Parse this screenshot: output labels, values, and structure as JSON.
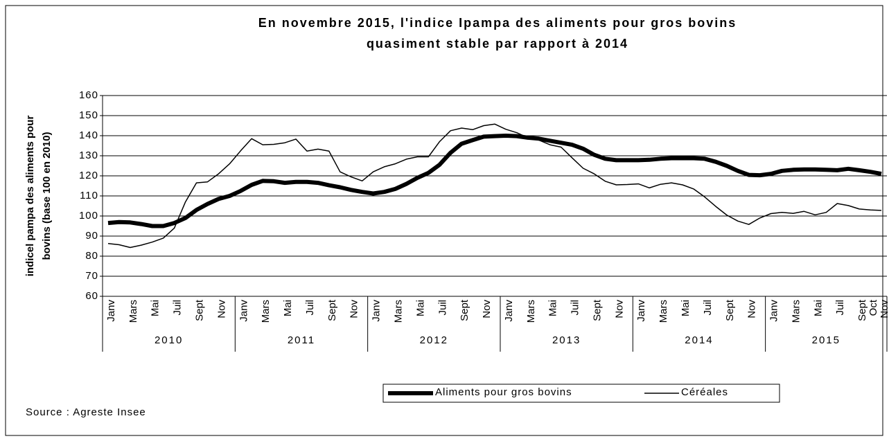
{
  "chart_data": {
    "type": "line",
    "title": [
      "En novembre 2015, l'indice Ipampa des aliments pour gros bovins",
      "quasiment stable par rapport à 2014"
    ],
    "ylabel": [
      "indicel pampa des aliments pour",
      "bovins (base 100 en 2010)"
    ],
    "source": "Source : Agreste Insee",
    "categories": [
      "Janv",
      null,
      "Mars",
      null,
      "Mai",
      null,
      "Juil",
      null,
      "Sept",
      null,
      "Nov",
      null,
      "Janv",
      null,
      "Mars",
      null,
      "Mai",
      null,
      "Juil",
      null,
      "Sept",
      null,
      "Nov",
      null,
      "Janv",
      null,
      "Mars",
      null,
      "Mai",
      null,
      "Juil",
      null,
      "Sept",
      null,
      "Nov",
      null,
      "Janv",
      null,
      "Mars",
      null,
      "Mai",
      null,
      "Juil",
      null,
      "Sept",
      null,
      "Nov",
      null,
      "Janv",
      null,
      "Mars",
      null,
      "Mai",
      null,
      "Juil",
      null,
      "Sept",
      null,
      "Nov",
      null,
      "Janv",
      null,
      "Mars",
      null,
      "Mai",
      null,
      "Juil",
      null,
      "Sept",
      "Oct",
      "Nov"
    ],
    "x_groups": [
      "2010",
      "2011",
      "2012",
      "2013",
      "2014",
      "2015"
    ],
    "series": [
      {
        "name": "Aliments pour gros bovins",
        "color": "#000000",
        "width": 6,
        "values": [
          96.5,
          97,
          96.8,
          96,
          95,
          95,
          96.5,
          99,
          103,
          106,
          108.5,
          110,
          112.5,
          115.5,
          117.5,
          117.3,
          116.5,
          117,
          117,
          116.5,
          115.3,
          114.3,
          113,
          112,
          111.2,
          112,
          113.5,
          116,
          119,
          121.5,
          125.5,
          131.5,
          136,
          137.8,
          139.5,
          139.8,
          140,
          139.8,
          139,
          138.5,
          137.5,
          136.5,
          135.5,
          133.5,
          130.5,
          128.5,
          127.8,
          127.8,
          127.8,
          128,
          128.5,
          128.8,
          128.8,
          128.8,
          128.5,
          127,
          125,
          122.5,
          120.5,
          120.3,
          121,
          122.5,
          123,
          123.2,
          123.2,
          123,
          122.8,
          123.5,
          122.8,
          122,
          121
        ]
      },
      {
        "name": "Céréales",
        "color": "#000000",
        "width": 1.5,
        "values": [
          86.3,
          85.7,
          84.3,
          85.5,
          87,
          89,
          94,
          107,
          116.5,
          117,
          121,
          126,
          132.5,
          138.5,
          135.5,
          135.7,
          136.5,
          138.3,
          132.3,
          133.3,
          132.3,
          122,
          119.5,
          117.5,
          122,
          124.5,
          126,
          128.3,
          129.5,
          129.5,
          137,
          142.5,
          143.8,
          143,
          145,
          145.8,
          143.2,
          141.5,
          139,
          137.8,
          135.5,
          134.3,
          129,
          123.8,
          121,
          117.3,
          115.5,
          115.7,
          116,
          114,
          115.8,
          116.5,
          115.5,
          113.5,
          109.5,
          104.8,
          100.5,
          97.5,
          95.8,
          99,
          101.2,
          101.8,
          101.3,
          102.3,
          100.6,
          101.8,
          106.2,
          105.2,
          103.5,
          103,
          102.8
        ]
      }
    ],
    "ylim": [
      60,
      160
    ],
    "yticks": [
      60,
      70,
      80,
      90,
      100,
      110,
      120,
      130,
      140,
      150,
      160
    ],
    "grid": true
  }
}
